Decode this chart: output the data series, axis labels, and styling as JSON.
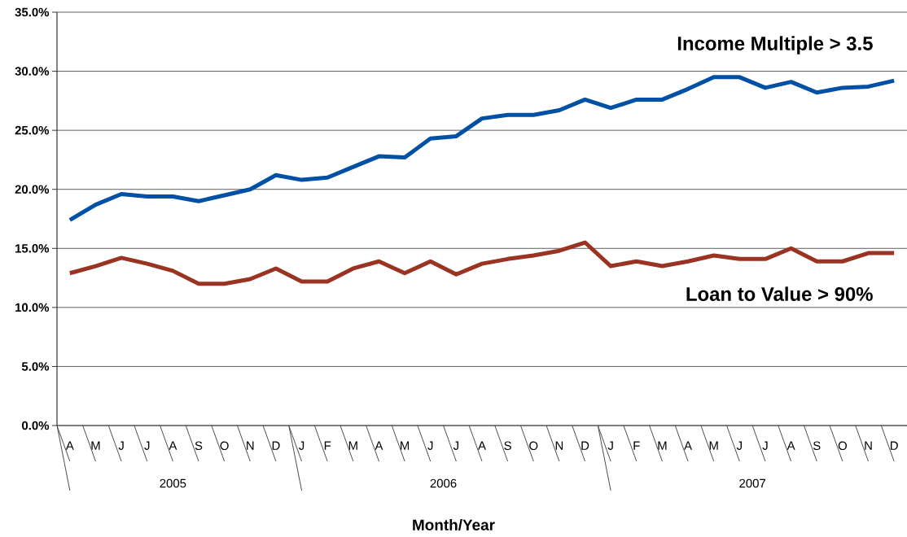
{
  "chart_data": {
    "type": "line",
    "xlabel": "Month/Year",
    "categories": [
      "A",
      "M",
      "J",
      "J",
      "A",
      "S",
      "O",
      "N",
      "D",
      "J",
      "F",
      "M",
      "A",
      "M",
      "J",
      "J",
      "A",
      "S",
      "O",
      "N",
      "D",
      "J",
      "F",
      "M",
      "A",
      "M",
      "J",
      "J",
      "A",
      "S",
      "O",
      "N",
      "D"
    ],
    "annotations": [
      "2005",
      "2006",
      "2007"
    ],
    "series": [
      {
        "name": "Income Multiple > 3.5",
        "color": "#0050a5",
        "values": [
          17.4,
          18.7,
          19.6,
          19.4,
          19.4,
          19.0,
          19.5,
          20.0,
          21.2,
          20.8,
          21.0,
          21.9,
          22.8,
          22.7,
          24.3,
          24.5,
          26.0,
          26.3,
          26.3,
          26.7,
          27.6,
          26.9,
          27.6,
          27.6,
          28.5,
          29.5,
          29.5,
          28.6,
          29.1,
          28.2,
          28.6,
          28.7,
          29.2
        ]
      },
      {
        "name": "Loan to Value > 90%",
        "color": "#9a3322",
        "values": [
          12.9,
          13.5,
          14.2,
          13.7,
          13.1,
          12.0,
          12.0,
          12.4,
          13.3,
          12.2,
          12.2,
          13.3,
          13.9,
          12.9,
          13.9,
          12.8,
          13.7,
          14.1,
          14.4,
          14.8,
          15.5,
          13.5,
          13.9,
          13.5,
          13.9,
          14.4,
          14.1,
          14.1,
          15.0,
          13.9,
          13.9,
          14.6,
          14.6
        ]
      }
    ],
    "ylim": [
      0,
      35
    ],
    "yticks": [
      {
        "value": 0,
        "label": "0.0%"
      },
      {
        "value": 5,
        "label": "5.0%"
      },
      {
        "value": 10,
        "label": "10.0%"
      },
      {
        "value": 15,
        "label": "15.0%"
      },
      {
        "value": 20,
        "label": "20.0%"
      },
      {
        "value": 25,
        "label": "25.0%"
      },
      {
        "value": 30,
        "label": "30.0%"
      },
      {
        "value": 35,
        "label": "35.0%"
      }
    ],
    "grid": "y",
    "legend": false,
    "marker": "none",
    "line_style": "solid"
  }
}
